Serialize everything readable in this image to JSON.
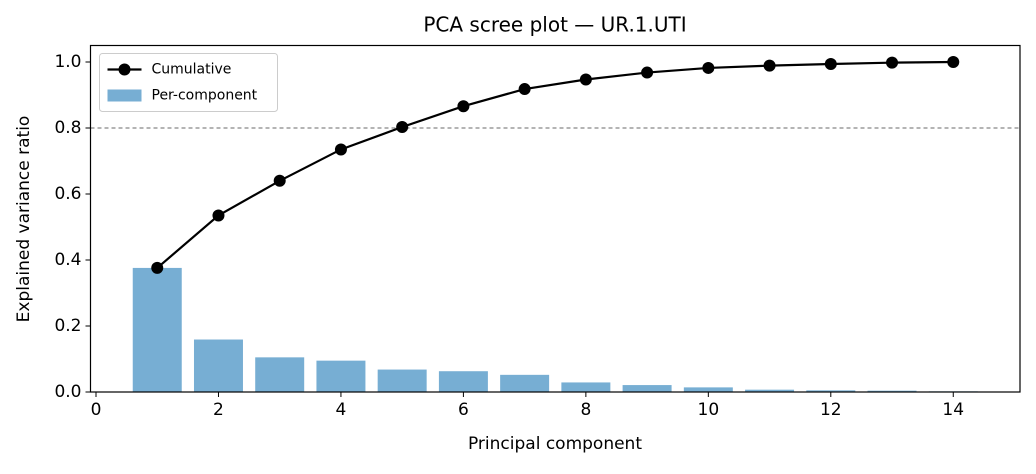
{
  "chart_data": {
    "type": "bar",
    "title": "PCA scree plot — UR.1.UTI",
    "x_label": "Principal component",
    "y_label": "Explained variance ratio",
    "x": [
      1,
      2,
      3,
      4,
      5,
      6,
      7,
      8,
      9,
      10,
      11,
      12,
      13,
      14
    ],
    "series": [
      {
        "name": "Per-component",
        "type": "bar",
        "color": "#77aed3",
        "values": [
          0.376,
          0.159,
          0.105,
          0.095,
          0.068,
          0.063,
          0.052,
          0.029,
          0.021,
          0.014,
          0.007,
          0.005,
          0.004,
          0.002
        ]
      },
      {
        "name": "Cumulative",
        "type": "line",
        "color": "#000000",
        "values": [
          0.376,
          0.535,
          0.64,
          0.735,
          0.803,
          0.866,
          0.918,
          0.947,
          0.968,
          0.982,
          0.989,
          0.994,
          0.998,
          1.0
        ]
      }
    ],
    "threshold": 0.8,
    "threshold_color": "#888888",
    "xlim": [
      -0.09,
      15.09
    ],
    "xticks": [
      0,
      2,
      4,
      6,
      8,
      10,
      12,
      14
    ],
    "ylim": [
      0,
      1.05
    ],
    "yticks": [
      {
        "value": 0,
        "label": "0.0"
      },
      0.2,
      0.4,
      0.6,
      0.8,
      {
        "value": 1,
        "label": "1.0"
      }
    ],
    "legend": "upper left"
  }
}
